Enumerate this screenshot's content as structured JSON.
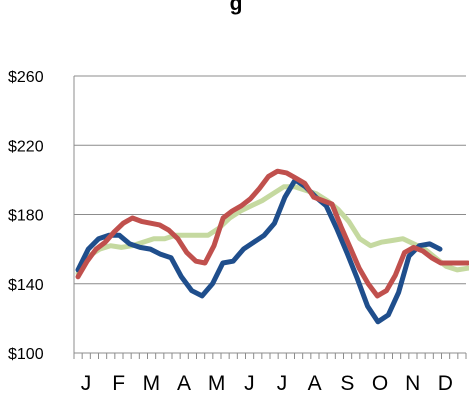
{
  "chart_data": {
    "type": "line",
    "title": "g",
    "y_ticks": [
      "$260",
      "$220",
      "$180",
      "$140",
      "$100"
    ],
    "y_tick_values": [
      260,
      220,
      180,
      140,
      100
    ],
    "ylim": [
      100,
      260
    ],
    "x_labels": [
      "J",
      "F",
      "M",
      "A",
      "M",
      "J",
      "J",
      "A",
      "S",
      "O",
      "N",
      "D"
    ],
    "grid": true,
    "legend": "none",
    "series": [
      {
        "color": "#c5d9a0",
        "values": [
          146,
          156,
          160,
          162,
          161,
          162,
          164,
          166,
          166,
          168,
          168,
          168,
          168,
          172,
          178,
          182,
          185,
          188,
          192,
          196,
          196,
          194,
          192,
          188,
          183,
          176,
          166,
          162,
          164,
          165,
          166,
          163,
          160,
          155,
          150,
          148,
          149
        ]
      },
      {
        "color": "#1f4e8c",
        "values": [
          148,
          160,
          166,
          168,
          168,
          163,
          161,
          160,
          157,
          155,
          144,
          136,
          133,
          140,
          152,
          153,
          160,
          164,
          168,
          175,
          190,
          200,
          196,
          190,
          185,
          172,
          158,
          143,
          127,
          118,
          122,
          135,
          156,
          162,
          163,
          160
        ]
      },
      {
        "color": "#c0504d",
        "values": [
          144,
          153,
          160,
          164,
          170,
          175,
          178,
          176,
          175,
          174,
          171,
          166,
          158,
          153,
          152,
          162,
          178,
          182,
          185,
          189,
          195,
          202,
          205,
          204,
          201,
          198,
          190,
          188,
          186,
          173,
          161,
          149,
          140,
          133,
          136,
          145,
          158,
          161,
          159,
          155,
          152,
          152,
          152,
          152
        ]
      }
    ]
  }
}
